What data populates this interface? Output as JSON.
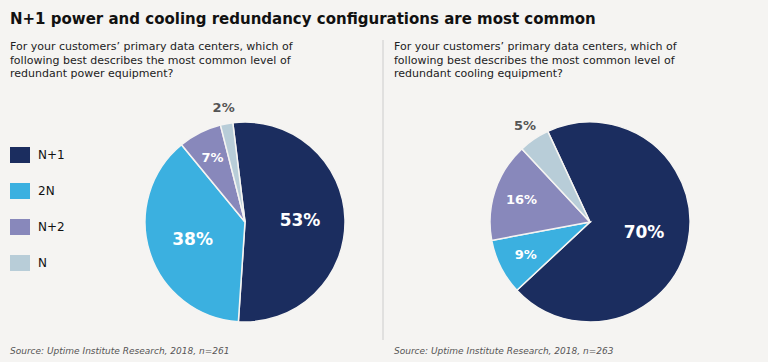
{
  "chart_data": [
    {
      "type": "pie",
      "title": "N+1 power and cooling redundancy configurations are most common",
      "subtitle": "For your customers’ primary data centers, which of\nfollowing best describes the most common level of\nredundant power equipment?",
      "categories": [
        "N+1",
        "2N",
        "N+2",
        "N"
      ],
      "values": [
        53,
        38,
        7,
        2
      ],
      "value_labels": [
        "53%",
        "38%",
        "7%",
        "2%"
      ],
      "colors": [
        "#1b2d5f",
        "#3bb0e0",
        "#8888bb",
        "#b8cdd8"
      ],
      "data_labels": true,
      "legend": "left",
      "annotations": [
        "Source: Uptime Institute Research, 2018, n=261"
      ]
    },
    {
      "type": "pie",
      "subtitle": "For your customers’ primary data centers, which of\nfollowing best describes the most common level of\nredundant cooling equipment?",
      "categories": [
        "N+1",
        "2N",
        "N+2",
        "N"
      ],
      "values": [
        70,
        9,
        16,
        5
      ],
      "value_labels": [
        "70%",
        "9%",
        "16%",
        "5%"
      ],
      "colors": [
        "#1b2d5f",
        "#3bb0e0",
        "#8888bb",
        "#b8cdd8"
      ],
      "data_labels": true,
      "annotations": [
        "Source: Uptime Institute Research, 2018, n=263"
      ]
    }
  ]
}
